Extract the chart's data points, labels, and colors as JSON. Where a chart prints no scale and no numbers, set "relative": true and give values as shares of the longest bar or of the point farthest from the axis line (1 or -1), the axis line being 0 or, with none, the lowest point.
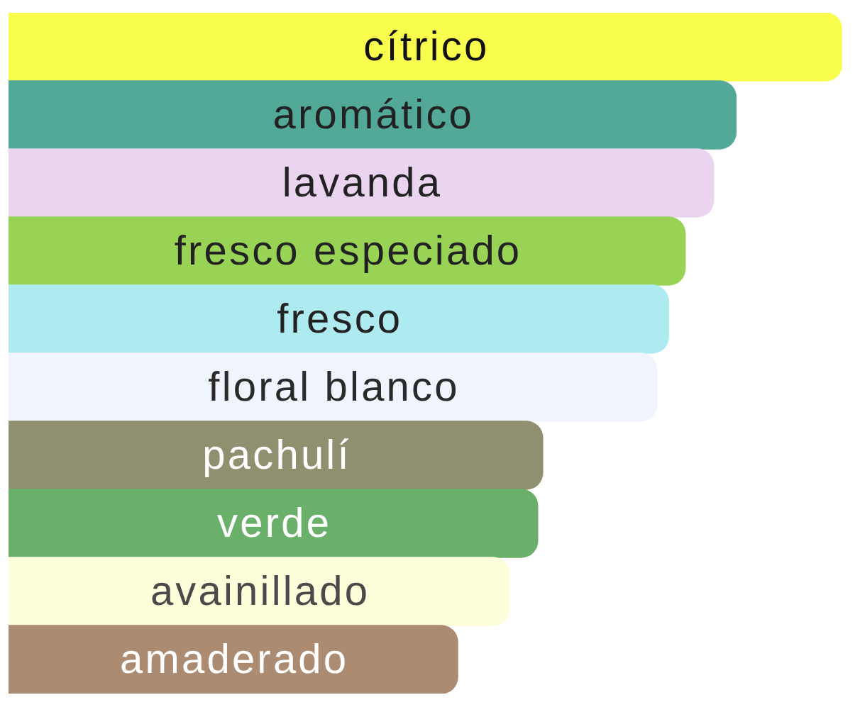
{
  "chart_data": {
    "type": "bar",
    "orientation": "horizontal",
    "relative": true,
    "categories": [
      "cítrico",
      "aromático",
      "lavanda",
      "fresco especiado",
      "fresco",
      "floral blanco",
      "pachulí",
      "verde",
      "avainillado",
      "amaderado"
    ],
    "values": [
      1,
      0.873,
      0.846,
      0.812,
      0.792,
      0.778,
      0.641,
      0.635,
      0.601,
      0.539
    ],
    "colors": [
      "#f9fd4d",
      "#52a997",
      "#ead4ef",
      "#99d355",
      "#aeebf1",
      "#eff4fd",
      "#909070",
      "#6bb06a",
      "#fffedb",
      "#ab8b72"
    ]
  }
}
